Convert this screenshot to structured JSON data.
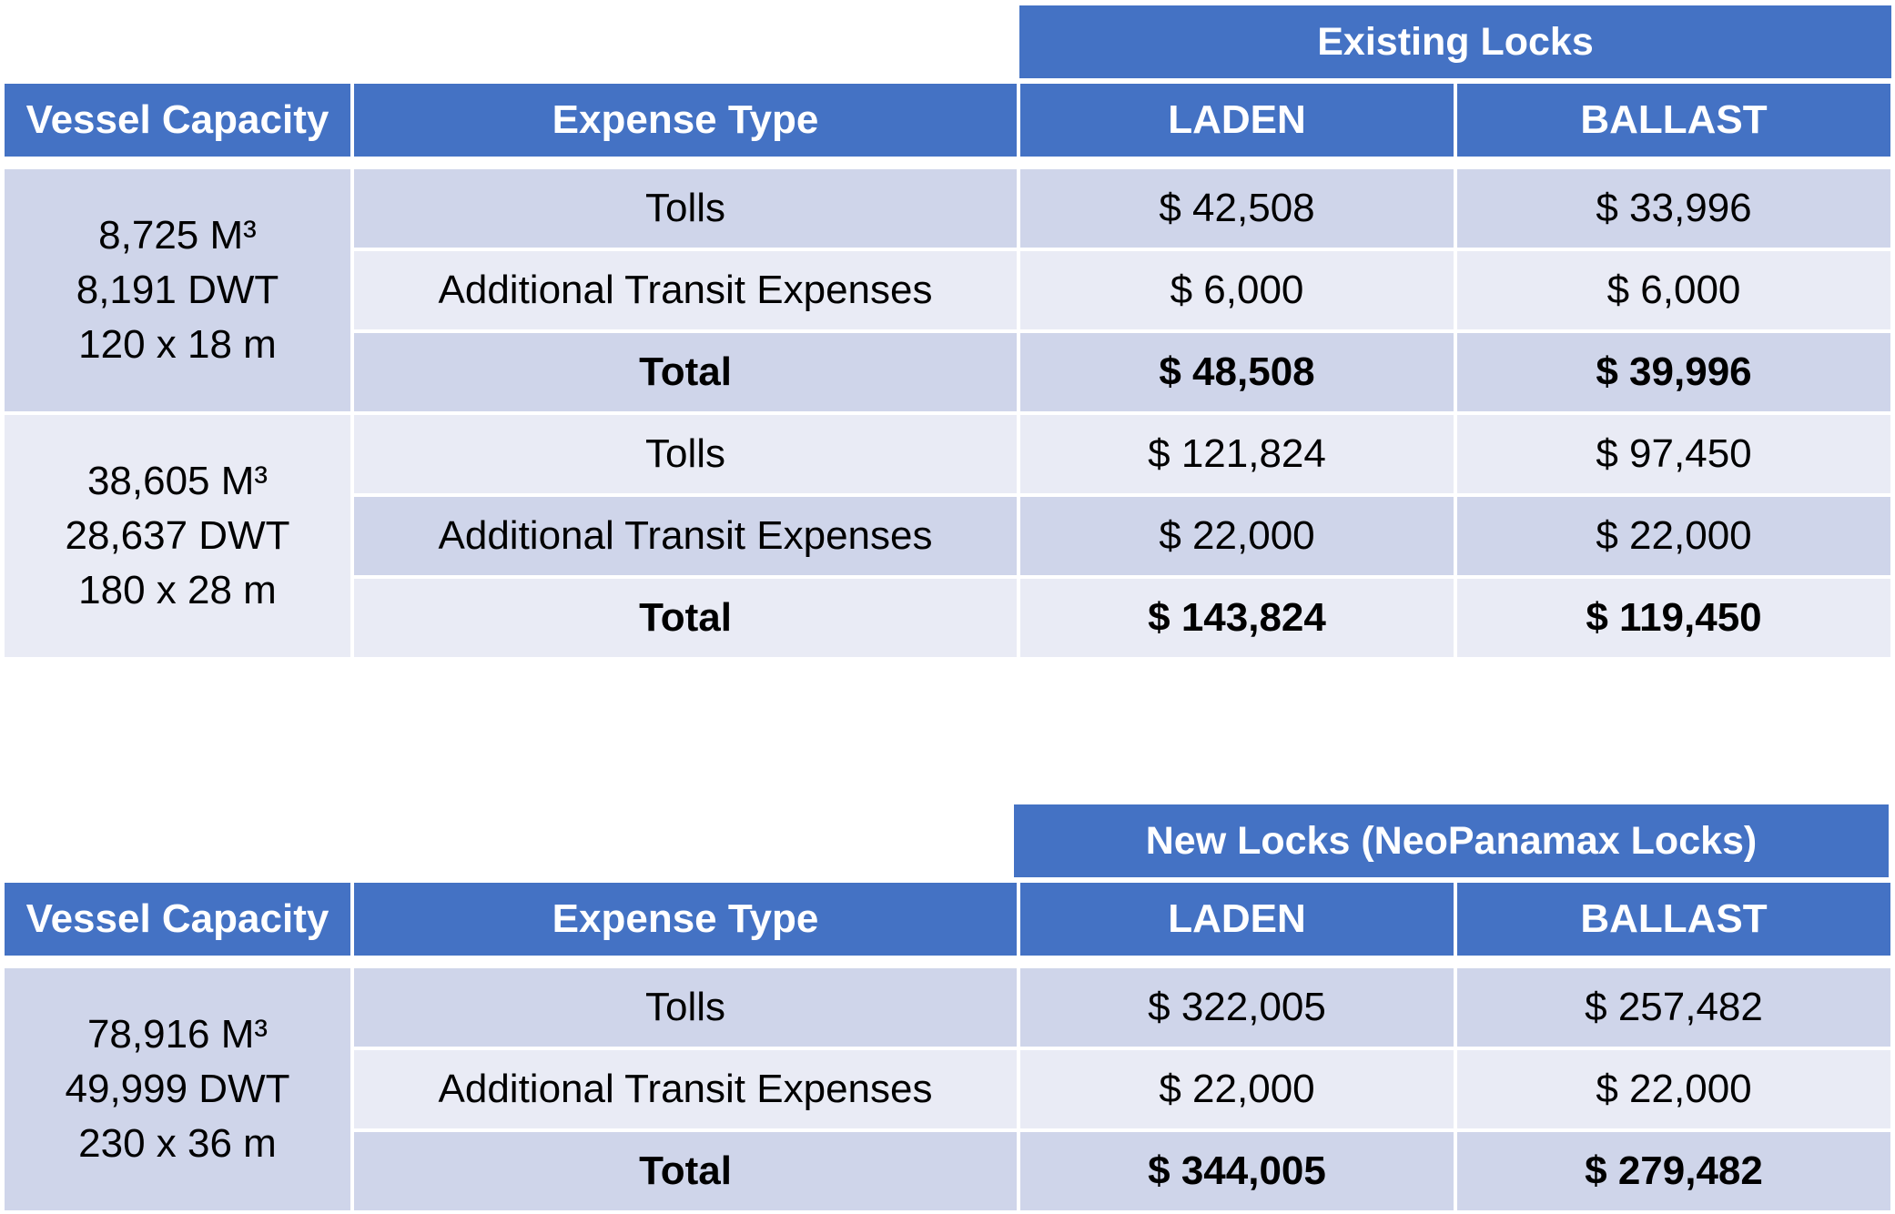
{
  "tables": [
    {
      "title": "Existing Locks",
      "headers": [
        "Vessel Capacity",
        "Expense Type",
        "LADEN",
        "BALLAST"
      ],
      "groups": [
        {
          "capacity": [
            "8,725 M³",
            "8,191 DWT",
            "120 x 18 m"
          ],
          "rows": [
            {
              "type": "Tolls",
              "laden": "$ 42,508",
              "ballast": "$ 33,996"
            },
            {
              "type": "Additional Transit Expenses",
              "laden": "$ 6,000",
              "ballast": "$ 6,000"
            },
            {
              "type": "Total",
              "laden": "$ 48,508",
              "ballast": "$ 39,996"
            }
          ]
        },
        {
          "capacity": [
            "38,605 M³",
            "28,637 DWT",
            "180 x 28 m"
          ],
          "rows": [
            {
              "type": "Tolls",
              "laden": "$ 121,824",
              "ballast": "$ 97,450"
            },
            {
              "type": "Additional Transit Expenses",
              "laden": "$ 22,000",
              "ballast": "$ 22,000"
            },
            {
              "type": "Total",
              "laden": "$ 143,824",
              "ballast": "$ 119,450"
            }
          ]
        }
      ]
    },
    {
      "title": "New Locks (NeoPanamax Locks)",
      "headers": [
        "Vessel Capacity",
        "Expense Type",
        "LADEN",
        "BALLAST"
      ],
      "groups": [
        {
          "capacity": [
            "78,916 M³",
            "49,999 DWT",
            "230 x 36 m"
          ],
          "rows": [
            {
              "type": "Tolls",
              "laden": "$ 322,005",
              "ballast": "$ 257,482"
            },
            {
              "type": "Additional Transit Expenses",
              "laden": "$ 22,000",
              "ballast": "$ 22,000"
            },
            {
              "type": "Total",
              "laden": "$ 344,005",
              "ballast": "$ 279,482"
            }
          ]
        }
      ]
    }
  ]
}
